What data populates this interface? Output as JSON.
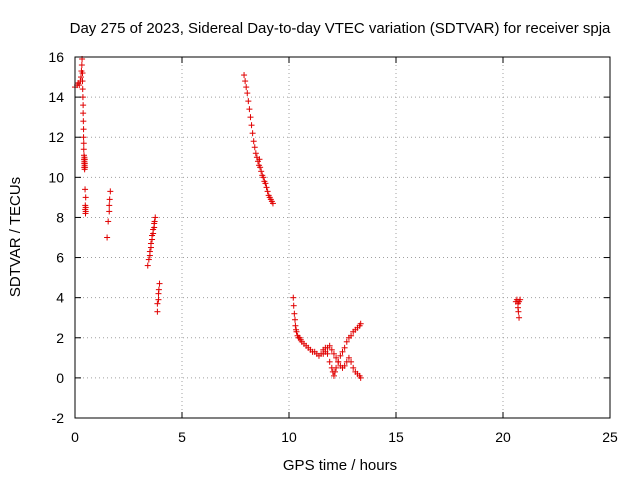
{
  "chart_data": {
    "type": "scatter",
    "title": "Day 275 of 2023, Sidereal Day-to-day VTEC variation (SDTVAR) for receiver spja",
    "xlabel": "GPS time / hours",
    "ylabel": "SDTVAR / TECUs",
    "xlim": [
      0,
      25
    ],
    "ylim": [
      -2,
      16
    ],
    "xticks": [
      "0",
      "5",
      "10",
      "15",
      "20",
      "25"
    ],
    "yticks": [
      "-2",
      "0",
      "2",
      "4",
      "6",
      "8",
      "10",
      "12",
      "14",
      "16"
    ],
    "grid": true,
    "marker": "plus",
    "color": "#e00000",
    "series": [
      {
        "name": "SDTVAR",
        "segments": [
          {
            "x": [
              0.0,
              0.1,
              0.15,
              0.2,
              0.25,
              0.28,
              0.3,
              0.32,
              0.33,
              0.35,
              0.35,
              0.36,
              0.37,
              0.38,
              0.38,
              0.39,
              0.4,
              0.4,
              0.41,
              0.41,
              0.42,
              0.42,
              0.43,
              0.43,
              0.44,
              0.44,
              0.45,
              0.45,
              0.46,
              0.46,
              0.47,
              0.47,
              0.48,
              0.48,
              0.49,
              0.5,
              0.5,
              0.5
            ],
            "y": [
              14.5,
              14.6,
              14.7,
              14.6,
              14.8,
              15.0,
              15.3,
              15.6,
              15.9,
              15.2,
              14.8,
              14.4,
              14.0,
              13.6,
              13.2,
              12.8,
              12.4,
              12.0,
              11.7,
              11.4,
              11.1,
              10.9,
              10.7,
              10.5,
              10.8,
              11.0,
              10.6,
              10.4,
              10.9,
              10.7,
              10.5,
              9.4,
              8.6,
              8.4,
              8.2,
              9.0,
              8.5,
              8.3
            ]
          },
          {
            "x": [
              1.5,
              1.55,
              1.6,
              1.6,
              1.62,
              1.65
            ],
            "y": [
              7.0,
              7.8,
              8.3,
              8.6,
              8.9,
              9.3
            ]
          },
          {
            "x": [
              3.4,
              3.45,
              3.5,
              3.5,
              3.55,
              3.55,
              3.6,
              3.6,
              3.65,
              3.65,
              3.7,
              3.7,
              3.72,
              3.75
            ],
            "y": [
              5.6,
              5.9,
              6.1,
              6.3,
              6.5,
              6.7,
              6.9,
              7.1,
              7.2,
              7.4,
              7.5,
              7.7,
              7.8,
              8.0
            ],
            "note": "partial"
          },
          {
            "x": [
              3.85,
              3.85,
              3.9,
              3.9,
              3.92,
              3.95
            ],
            "y": [
              3.3,
              3.7,
              3.9,
              4.2,
              4.4,
              4.7
            ]
          },
          {
            "x": [
              7.9,
              7.95,
              8.0,
              8.05,
              8.1,
              8.15,
              8.2,
              8.25,
              8.3,
              8.35,
              8.4,
              8.45,
              8.5,
              8.55,
              8.6,
              8.62,
              8.65,
              8.7,
              8.75,
              8.8,
              8.85,
              8.9,
              8.95,
              9.0,
              9.05,
              9.1,
              9.15,
              9.2,
              9.25
            ],
            "y": [
              15.1,
              14.8,
              14.5,
              14.2,
              13.8,
              13.4,
              13.0,
              12.6,
              12.2,
              11.8,
              11.5,
              11.2,
              11.0,
              10.8,
              10.6,
              10.9,
              10.5,
              10.3,
              10.1,
              10.0,
              9.8,
              9.7,
              9.5,
              9.3,
              9.1,
              9.0,
              8.9,
              8.8,
              8.7
            ]
          },
          {
            "x": [
              10.2,
              10.22,
              10.25,
              10.28,
              10.3,
              10.33,
              10.35,
              10.4,
              10.45,
              10.5,
              10.55,
              10.6,
              10.7,
              10.8,
              10.9,
              11.0,
              11.1,
              11.2,
              11.3,
              11.4,
              11.5,
              11.6,
              11.7,
              11.8,
              11.9,
              12.0,
              12.05,
              12.1,
              12.15,
              12.2,
              12.3,
              12.4,
              12.5,
              12.6,
              12.7,
              12.8,
              12.9,
              13.0,
              13.1,
              13.2,
              13.3,
              13.35
            ],
            "y": [
              4.0,
              3.6,
              3.2,
              2.9,
              2.6,
              2.4,
              2.3,
              2.1,
              2.0,
              2.0,
              1.9,
              1.8,
              1.7,
              1.6,
              1.5,
              1.4,
              1.3,
              1.3,
              1.2,
              1.1,
              1.2,
              1.4,
              1.5,
              1.2,
              0.8,
              0.5,
              0.3,
              0.1,
              0.3,
              0.5,
              0.8,
              1.1,
              1.3,
              1.5,
              1.8,
              2.0,
              2.1,
              2.3,
              2.4,
              2.5,
              2.6,
              2.7
            ]
          },
          {
            "x": [
              11.6,
              11.7,
              11.8,
              11.9,
              12.0,
              12.1,
              12.2,
              12.3,
              12.4,
              12.5,
              12.6,
              12.7,
              12.8,
              12.9,
              13.0,
              13.1,
              13.2,
              13.3,
              13.35
            ],
            "y": [
              1.2,
              1.3,
              1.5,
              1.6,
              1.4,
              1.2,
              1.0,
              0.8,
              0.6,
              0.5,
              0.6,
              0.8,
              1.0,
              0.8,
              0.5,
              0.3,
              0.2,
              0.1,
              0.0
            ]
          },
          {
            "x": [
              20.6,
              20.65,
              20.7,
              20.7,
              20.72,
              20.75,
              20.75,
              20.8
            ],
            "y": [
              3.8,
              3.9,
              3.7,
              3.5,
              3.3,
              3.0,
              3.8,
              3.9
            ]
          }
        ]
      }
    ]
  }
}
